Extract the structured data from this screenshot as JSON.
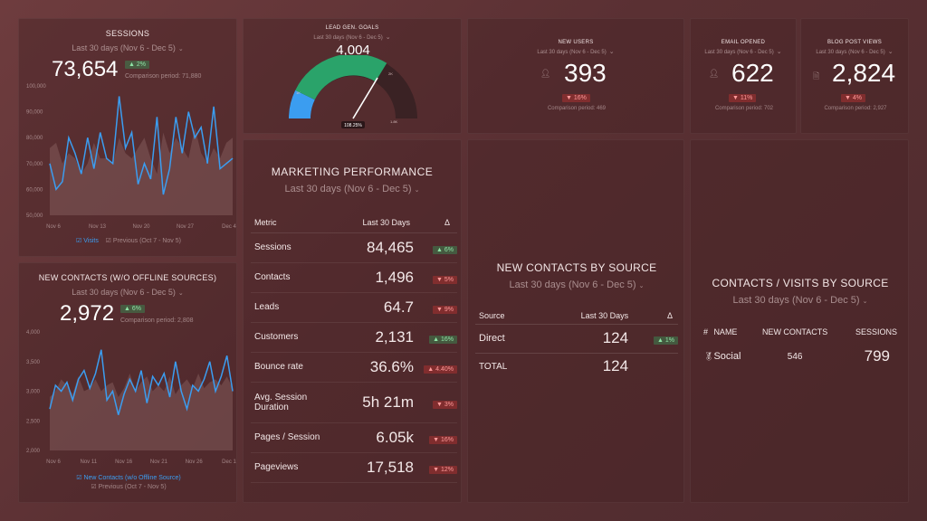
{
  "sessions": {
    "title": "SESSIONS",
    "period": "Last 30 days (Nov 6 - Dec 5)",
    "value": "73,654",
    "change": "2%",
    "comparison": "Comparison period: 71,880",
    "y_ticks": [
      "100,000",
      "90,000",
      "80,000",
      "70,000",
      "60,000",
      "50,000"
    ],
    "x_ticks": [
      "Nov 6",
      "Nov 13",
      "Nov 20",
      "Nov 27",
      "Dec 4"
    ],
    "legend_current": "Visits",
    "legend_previous": "Previous (Oct 7 - Nov 5)"
  },
  "new_contacts": {
    "title": "NEW CONTACTS (W/O OFFLINE SOURCES)",
    "period": "Last 30 days (Nov 6 - Dec 5)",
    "value": "2,972",
    "change": "6%",
    "comparison": "Comparison period: 2,808",
    "y_ticks": [
      "4,000",
      "3,500",
      "3,000",
      "2,500",
      "2,000"
    ],
    "x_ticks": [
      "Nov 6",
      "Nov 11",
      "Nov 16",
      "Nov 21",
      "Nov 26",
      "Dec 1"
    ],
    "legend_current": "New Contacts (w/o Offline Source)",
    "legend_previous": "Previous (Oct 7 - Nov 5)"
  },
  "lead_gen": {
    "title": "LEAD GEN. GOALS",
    "period": "Last 30 days (Nov 6 - Dec 5)",
    "value": "4,004",
    "gauge_label": "108.25%",
    "tick_left": "1K",
    "tick_right": "1.8K",
    "tick_top": "2K"
  },
  "kpis": [
    {
      "title": "NEW USERS",
      "period": "Last 30 days (Nov 6 - Dec 5)",
      "value": "393",
      "change": "16%",
      "comparison": "Comparison period: 469",
      "icon": "user-icon"
    },
    {
      "title": "EMAIL OPENED",
      "period": "Last 30 days (Nov 6 - Dec 5)",
      "value": "622",
      "change": "11%",
      "comparison": "Comparison period: 702",
      "icon": "user-icon"
    },
    {
      "title": "BLOG POST VIEWS",
      "period": "Last 30 days (Nov 6 - Dec 5)",
      "value": "2,824",
      "change": "4%",
      "comparison": "Comparison period: 2,927",
      "icon": "document-icon"
    }
  ],
  "marketing": {
    "title": "MARKETING PERFORMANCE",
    "period": "Last 30 days (Nov 6 - Dec 5)",
    "col_metric": "Metric",
    "col_value": "Last 30 Days",
    "col_delta": "Δ",
    "rows": [
      {
        "metric": "Sessions",
        "value": "84,465",
        "change": "6%",
        "dir": "up"
      },
      {
        "metric": "Contacts",
        "value": "1,496",
        "change": "5%",
        "dir": "down"
      },
      {
        "metric": "Leads",
        "value": "64.7",
        "change": "9%",
        "dir": "down"
      },
      {
        "metric": "Customers",
        "value": "2,131",
        "change": "16%",
        "dir": "up"
      },
      {
        "metric": "Bounce rate",
        "value": "36.6%",
        "change": "4.40%",
        "dir": "uprd"
      },
      {
        "metric": "Avg. Session Duration",
        "value": "5h 21m",
        "change": "3%",
        "dir": "down"
      },
      {
        "metric": "Pages / Session",
        "value": "6.05k",
        "change": "16%",
        "dir": "down"
      },
      {
        "metric": "Pageviews",
        "value": "17,518",
        "change": "12%",
        "dir": "down"
      }
    ]
  },
  "contacts_by_source": {
    "title": "NEW CONTACTS BY SOURCE",
    "period": "Last 30 days (Nov 6 - Dec 5)",
    "col_source": "Source",
    "col_value": "Last 30 Days",
    "col_delta": "Δ",
    "row_source": "Direct",
    "row_value": "124",
    "row_change": "1%",
    "total_label": "TOTAL",
    "total_value": "124"
  },
  "contacts_visits": {
    "title": "CONTACTS / VISITS BY SOURCE",
    "period": "Last 30 days (Nov 6 - Dec 5)",
    "col_num": "#",
    "col_name": "NAME",
    "col_contacts": "NEW CONTACTS",
    "col_sessions": "SESSIONS",
    "row_name": "Social",
    "row_contacts": "546",
    "row_sessions": "799"
  },
  "colors": {
    "accent_blue": "#3b9df0",
    "gauge_green": "#2aa36a",
    "gauge_dark": "#3a2224"
  },
  "chart_data": [
    {
      "type": "line",
      "title": "SESSIONS",
      "ylim": [
        50000,
        100000
      ],
      "series": [
        {
          "name": "Visits",
          "values": [
            70000,
            60000,
            63000,
            80000,
            74000,
            66000,
            80000,
            68000,
            82000,
            72000,
            70000,
            96000,
            76000,
            82000,
            62000,
            70000,
            64000,
            88000,
            58000,
            68000,
            88000,
            74000,
            90000,
            80000,
            84000,
            70000,
            92000,
            68000,
            70000,
            72000
          ]
        },
        {
          "name": "Previous (Oct 7 - Nov 5)",
          "values": [
            76000,
            78000,
            70000,
            74000,
            72000,
            66000,
            70000,
            78000,
            72000,
            72000,
            70000,
            80000,
            74000,
            72000,
            76000,
            80000,
            72000,
            66000,
            82000,
            74000,
            80000,
            76000,
            72000,
            84000,
            74000,
            70000,
            76000,
            72000,
            78000,
            80000
          ]
        }
      ]
    },
    {
      "type": "line",
      "title": "NEW CONTACTS (W/O OFFLINE SOURCES)",
      "ylim": [
        2000,
        4000
      ],
      "series": [
        {
          "name": "New Contacts (w/o Offline Source)",
          "values": [
            2700,
            3100,
            3000,
            3150,
            2850,
            3200,
            3350,
            3050,
            3300,
            3700,
            2850,
            3000,
            2600,
            2950,
            3200,
            3000,
            3350,
            2800,
            3250,
            3100,
            3300,
            2900,
            3500,
            3000,
            2700,
            3100,
            3000,
            3200,
            3500,
            3000,
            3250,
            3600,
            3000
          ]
        },
        {
          "name": "Previous (Oct 7 - Nov 5)",
          "values": [
            2900,
            3000,
            3200,
            3100,
            2950,
            3250,
            3000,
            3050,
            3200,
            3000,
            3100,
            3150,
            2900,
            3050,
            3300,
            3000,
            3150,
            3250,
            3000,
            3100,
            3000,
            3250,
            2950,
            3100,
            3200,
            3050,
            3300,
            3050,
            3150,
            3200,
            3100,
            3250,
            3050
          ]
        }
      ]
    }
  ]
}
